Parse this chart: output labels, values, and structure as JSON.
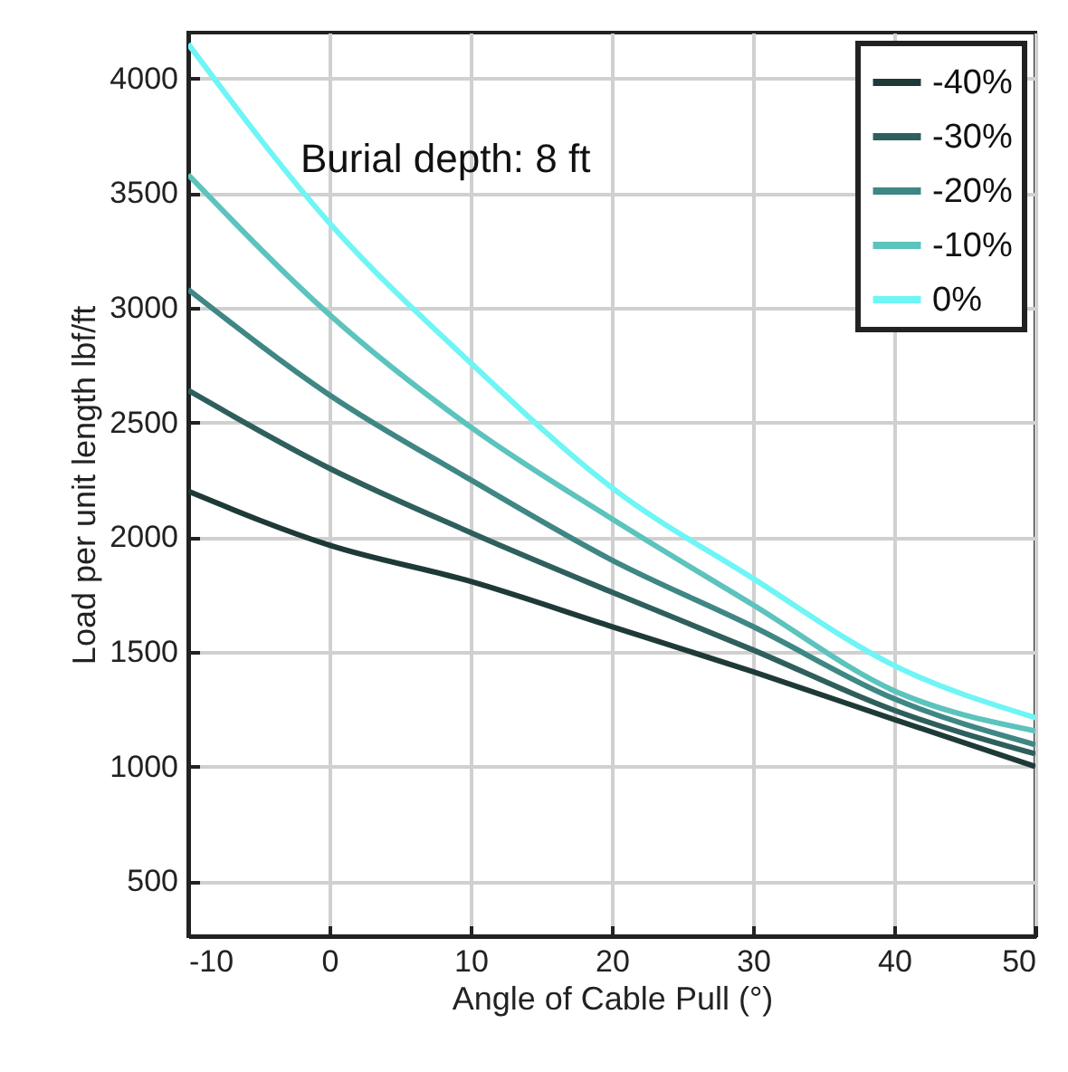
{
  "chart_data": {
    "type": "line",
    "xlabel": "Angle of Cable Pull (°)",
    "ylabel": "Load per unit length lbf/ft",
    "annotations": [
      "Burial depth: 8 ft"
    ],
    "x": [
      -10,
      0,
      10,
      20,
      30,
      40,
      50
    ],
    "series": [
      {
        "name": "-40%",
        "color": "#1e3a38",
        "values": [
          2200,
          1965,
          1807,
          1610,
          1413,
          1205,
          1000
        ]
      },
      {
        "name": "-30%",
        "color": "#2f5f5c",
        "values": [
          2640,
          2300,
          2020,
          1760,
          1508,
          1245,
          1055
        ]
      },
      {
        "name": "-20%",
        "color": "#3f8784",
        "values": [
          3080,
          2620,
          2250,
          1900,
          1610,
          1295,
          1095
        ]
      },
      {
        "name": "-10%",
        "color": "#5cc3bd",
        "values": [
          3580,
          2970,
          2480,
          2080,
          1705,
          1330,
          1155
        ]
      },
      {
        "name": "0%",
        "color": "#6ff5f5",
        "values": [
          4150,
          3370,
          2760,
          2216,
          1820,
          1440,
          1213
        ]
      }
    ],
    "xlim": [
      -10,
      50
    ],
    "xticks": [
      -10,
      0,
      10,
      20,
      30,
      40,
      50
    ],
    "ylim": [
      260,
      4200
    ],
    "yticks": [
      500,
      1000,
      1500,
      2000,
      2500,
      3000,
      3500,
      4000
    ],
    "grid": true,
    "legend": "top right",
    "line_style": "solid",
    "marker": "none"
  }
}
